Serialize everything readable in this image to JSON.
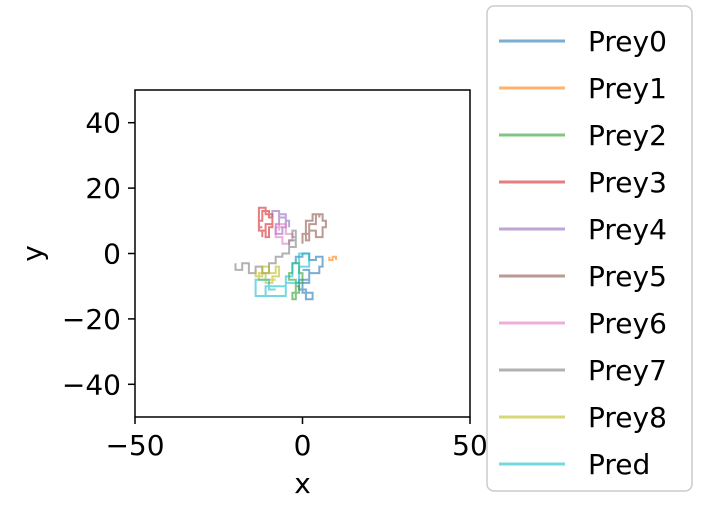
{
  "chart_data": {
    "type": "line",
    "title": "",
    "xlabel": "x",
    "ylabel": "y",
    "xlim": [
      -50,
      50
    ],
    "ylim": [
      -50,
      50
    ],
    "xticks": [
      -50,
      0,
      50
    ],
    "yticks": [
      -40,
      -20,
      0,
      20,
      40
    ],
    "xtick_labels": [
      "−50",
      "0",
      "50"
    ],
    "ytick_labels": [
      "−40",
      "−20",
      "0",
      "20",
      "40"
    ],
    "grid": false,
    "legend": "right-outside",
    "series": [
      {
        "name": "Prey0",
        "color": "#1f77b4",
        "x": [
          -2,
          -2,
          0,
          0,
          2,
          2,
          4,
          4,
          6,
          6,
          5,
          5,
          2,
          2,
          0,
          0,
          3,
          3,
          1,
          1,
          -1,
          -1,
          2,
          2,
          0
        ],
        "y": [
          -3,
          -1,
          -1,
          0,
          0,
          -2,
          -2,
          -1,
          -1,
          -4,
          -4,
          -6,
          -6,
          -9,
          -9,
          -12,
          -12,
          -14,
          -14,
          -11,
          -11,
          -8,
          -8,
          -5,
          -5
        ]
      },
      {
        "name": "Prey1",
        "color": "#ff7f0e",
        "x": [
          8,
          8,
          9,
          9,
          10,
          10
        ],
        "y": [
          -1,
          -2,
          -2,
          -1,
          -1,
          -2
        ]
      },
      {
        "name": "Prey2",
        "color": "#2ca02c",
        "x": [
          -3,
          -3,
          -4,
          -4,
          -2,
          -2,
          -1,
          -1,
          -3,
          -3,
          -2,
          -2,
          0,
          0,
          -1,
          -1,
          -3,
          -3
        ],
        "y": [
          -4,
          -6,
          -6,
          -8,
          -8,
          -10,
          -10,
          -12,
          -12,
          -14,
          -14,
          -9,
          -9,
          -6,
          -6,
          -3,
          -3,
          -5
        ]
      },
      {
        "name": "Prey3",
        "color": "#d62728",
        "x": [
          -12,
          -12,
          -11,
          -11,
          -9,
          -9,
          -10,
          -10,
          -12,
          -12,
          -13,
          -13,
          -11,
          -11,
          -10,
          -10,
          -9,
          -9,
          -11,
          -11,
          -13,
          -13,
          -12
        ],
        "y": [
          5,
          7,
          7,
          9,
          9,
          11,
          11,
          13,
          13,
          10,
          10,
          7,
          7,
          5,
          5,
          8,
          8,
          12,
          12,
          14,
          14,
          8,
          8
        ]
      },
      {
        "name": "Prey4",
        "color": "#9467bd",
        "x": [
          -9,
          -9,
          -7,
          -7,
          -5,
          -5,
          -6,
          -6,
          -8,
          -8,
          -7,
          -7,
          -5,
          -5,
          -4,
          -4
        ],
        "y": [
          11,
          13,
          13,
          11,
          11,
          8,
          8,
          6,
          6,
          9,
          9,
          12,
          12,
          10,
          10,
          8
        ]
      },
      {
        "name": "Prey5",
        "color": "#8c564b",
        "x": [
          0,
          0,
          2,
          2,
          4,
          4,
          6,
          6,
          7,
          7,
          6,
          6,
          4,
          4,
          2,
          2,
          1,
          1,
          3,
          3,
          5,
          5
        ],
        "y": [
          3,
          6,
          6,
          9,
          9,
          12,
          12,
          10,
          10,
          8,
          8,
          5,
          5,
          7,
          7,
          4,
          4,
          10,
          10,
          12,
          12,
          11
        ]
      },
      {
        "name": "Prey6",
        "color": "#e377c2",
        "x": [
          -7,
          -7,
          -5,
          -5,
          -3,
          -3,
          -4,
          -4,
          -6,
          -6,
          -8,
          -8,
          -6
        ],
        "y": [
          7,
          9,
          9,
          6,
          6,
          4,
          4,
          3,
          3,
          5,
          5,
          8,
          8
        ]
      },
      {
        "name": "Prey7",
        "color": "#7f7f7f",
        "x": [
          -20,
          -20,
          -18,
          -18,
          -16,
          -16,
          -14,
          -14,
          -12,
          -12,
          -10,
          -10,
          -8,
          -8,
          -6,
          -6,
          -4,
          -4,
          -2,
          -2,
          -3,
          -3,
          -2,
          -2,
          -4,
          -4
        ],
        "y": [
          -3,
          -5,
          -5,
          -3,
          -3,
          -6,
          -6,
          -4,
          -4,
          -6,
          -6,
          -3,
          -3,
          -1,
          -1,
          0,
          0,
          2,
          2,
          5,
          5,
          7,
          7,
          4,
          4,
          2
        ]
      },
      {
        "name": "Prey8",
        "color": "#bcbd22",
        "x": [
          -14,
          -14,
          -12,
          -12,
          -10,
          -10,
          -8,
          -8,
          -7,
          -7,
          -9,
          -9,
          -11,
          -11,
          -13,
          -13,
          -8
        ],
        "y": [
          -5,
          -7,
          -7,
          -4,
          -4,
          -6,
          -6,
          -4,
          -4,
          -7,
          -7,
          -9,
          -9,
          -6,
          -6,
          -8,
          -8
        ]
      },
      {
        "name": "Pred",
        "color": "#17becf",
        "x": [
          -11,
          -11,
          -5,
          -5,
          -1,
          -1,
          2,
          2,
          -1,
          -1,
          -3,
          -3,
          -5,
          -5,
          -14,
          -14,
          -10,
          -10,
          -8
        ],
        "y": [
          -13,
          -10,
          -10,
          -9,
          -9,
          -4,
          -4,
          0,
          0,
          -3,
          -3,
          -7,
          -7,
          -13,
          -13,
          -8,
          -8,
          -11,
          -11
        ]
      }
    ]
  }
}
